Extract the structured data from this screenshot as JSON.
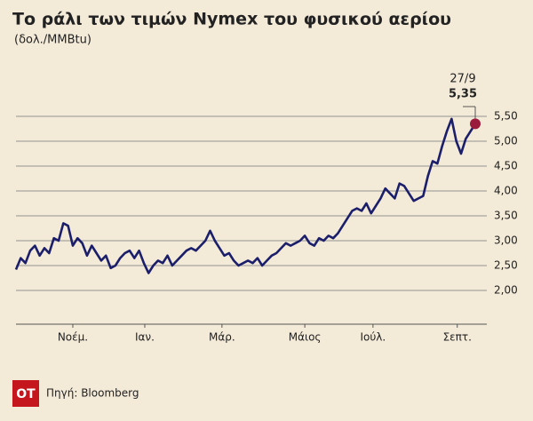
{
  "chart_data": {
    "type": "line",
    "title": "Το ράλι των τιμών Nymex του φυσικού αερίου",
    "subtitle": "(δολ./MMBtu)",
    "source": "Πηγή: Bloomberg",
    "logo": "ΟΤ",
    "annotation": {
      "date": "27/9",
      "label": "5,35"
    },
    "x": [
      0,
      1,
      2,
      3,
      4,
      5,
      6,
      7,
      8,
      9,
      10,
      11,
      12,
      13,
      14,
      15,
      16,
      17,
      18,
      19,
      20,
      21,
      22,
      23,
      24,
      25,
      26,
      27,
      28,
      29,
      30,
      31,
      32,
      33,
      34,
      35,
      36,
      37,
      38,
      39,
      40,
      41,
      42,
      43,
      44,
      45,
      46,
      47,
      48,
      49,
      50,
      51,
      52,
      53,
      54,
      55,
      56,
      57,
      58,
      59,
      60,
      61,
      62,
      63,
      64,
      65,
      66,
      67,
      68,
      69,
      70,
      71,
      72,
      73,
      74,
      75,
      76,
      77,
      78,
      79,
      80,
      81,
      82,
      83,
      84,
      85,
      86,
      87,
      88,
      89,
      90,
      91,
      92,
      93,
      94,
      95,
      96,
      97
    ],
    "series": [
      {
        "color": "#1b1f6b",
        "values": [
          2.42,
          2.65,
          2.55,
          2.8,
          2.9,
          2.7,
          2.85,
          2.75,
          3.05,
          3.0,
          3.35,
          3.3,
          2.9,
          3.05,
          2.95,
          2.7,
          2.9,
          2.75,
          2.6,
          2.7,
          2.45,
          2.5,
          2.65,
          2.75,
          2.8,
          2.65,
          2.8,
          2.55,
          2.35,
          2.5,
          2.6,
          2.55,
          2.7,
          2.5,
          2.6,
          2.7,
          2.8,
          2.85,
          2.8,
          2.9,
          3.0,
          3.2,
          3.0,
          2.85,
          2.7,
          2.75,
          2.6,
          2.5,
          2.55,
          2.6,
          2.55,
          2.65,
          2.5,
          2.6,
          2.7,
          2.75,
          2.85,
          2.95,
          2.9,
          2.95,
          3.0,
          3.1,
          2.95,
          2.9,
          3.05,
          3.0,
          3.1,
          3.05,
          3.15,
          3.3,
          3.45,
          3.6,
          3.65,
          3.6,
          3.75,
          3.55,
          3.7,
          3.85,
          4.05,
          3.95,
          3.85,
          4.15,
          4.1,
          3.95,
          3.8,
          3.85,
          3.9,
          4.3,
          4.6,
          4.55,
          4.9,
          5.2,
          5.45,
          5.0,
          4.75,
          5.05,
          5.2,
          5.35
        ]
      }
    ],
    "marker_color": "#9b1b3c",
    "xlim": [
      0,
      97
    ],
    "xticks": [
      {
        "value": 12,
        "label": "Νοέμ."
      },
      {
        "value": 27.2,
        "label": "Ιαν."
      },
      {
        "value": 43.5,
        "label": "Μάρ."
      },
      {
        "value": 61,
        "label": "Μάιος"
      },
      {
        "value": 75.4,
        "label": "Ιούλ."
      },
      {
        "value": 93.2,
        "label": "Σεπτ."
      }
    ],
    "ylim": [
      1.5,
      5.75
    ],
    "yticks": [
      {
        "value": 2,
        "label": "2,00"
      },
      {
        "value": 2.5,
        "label": "2,50"
      },
      {
        "value": 3,
        "label": "3,00"
      },
      {
        "value": 3.5,
        "label": "3,50"
      },
      {
        "value": 4,
        "label": "4,00"
      },
      {
        "value": 4.5,
        "label": "4,50"
      },
      {
        "value": 5,
        "label": "5,00"
      },
      {
        "value": 5.5,
        "label": "5,50"
      }
    ],
    "grid": true
  }
}
